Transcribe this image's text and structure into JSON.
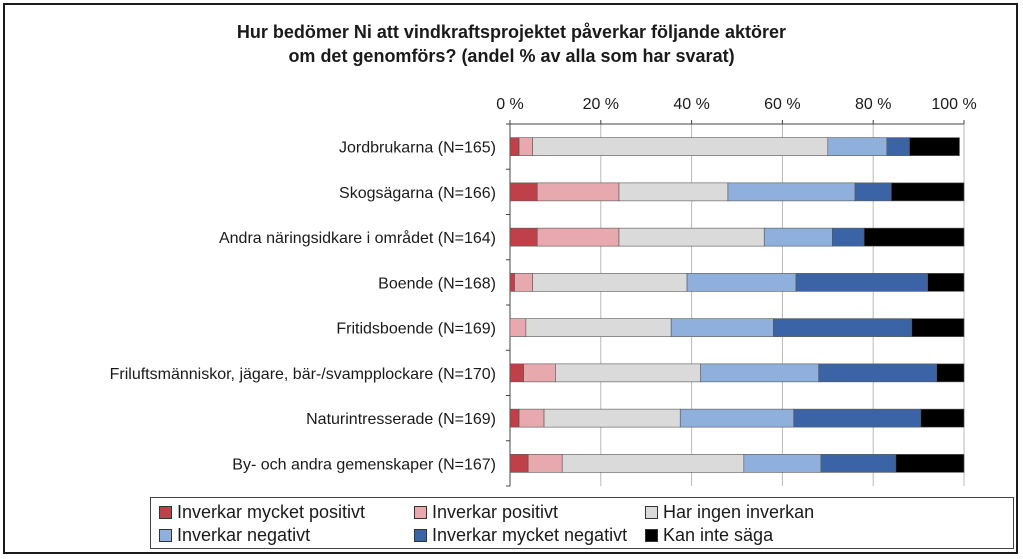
{
  "chart_data": {
    "type": "bar",
    "orientation": "horizontal",
    "stacked": true,
    "title_lines": [
      "Hur bedömer Ni att vindkraftsprojektet påverkar följande aktörer",
      "om det genomförs? (andel % av alla som har svarat)"
    ],
    "xlim": [
      0,
      100
    ],
    "x_ticks": [
      "0 %",
      "20 %",
      "40 %",
      "60 %",
      "80 %",
      "100 %"
    ],
    "grid": "vertical",
    "legend_position": "bottom",
    "categories": [
      "Jordbrukarna (N=165)",
      "Skogsägarna (N=166)",
      "Andra näringsidkare i området (N=164)",
      "Boende (N=168)",
      "Fritidsboende (N=169)",
      "Friluftsmänniskor, jägare, bär-/svampplockare (N=170)",
      "Naturintresserade (N=169)",
      "By- och andra gemenskaper (N=167)"
    ],
    "series": [
      {
        "name": "Inverkar mycket positivt",
        "color": "#c0404a",
        "values": [
          2,
          6,
          6,
          1,
          0,
          3,
          2,
          4
        ]
      },
      {
        "name": "Inverkar positivt",
        "color": "#e8a9ae",
        "values": [
          3,
          18,
          18,
          4,
          3.5,
          7,
          5.5,
          7.5
        ]
      },
      {
        "name": "Har ingen inverkan",
        "color": "#dadada",
        "values": [
          65,
          24,
          32,
          34,
          32,
          32,
          30,
          40
        ]
      },
      {
        "name": "Inverkar negativt",
        "color": "#8fb0dc",
        "values": [
          13,
          28,
          15,
          24,
          22.5,
          26,
          25,
          17
        ]
      },
      {
        "name": "Inverkar mycket negativt",
        "color": "#3a64a6",
        "values": [
          5,
          8,
          7,
          29,
          30.5,
          26,
          28,
          16.5
        ]
      },
      {
        "name": "Kan inte säga",
        "color": "#000000",
        "values": [
          11,
          16,
          22,
          8,
          11.5,
          6,
          9.5,
          15
        ]
      }
    ]
  }
}
